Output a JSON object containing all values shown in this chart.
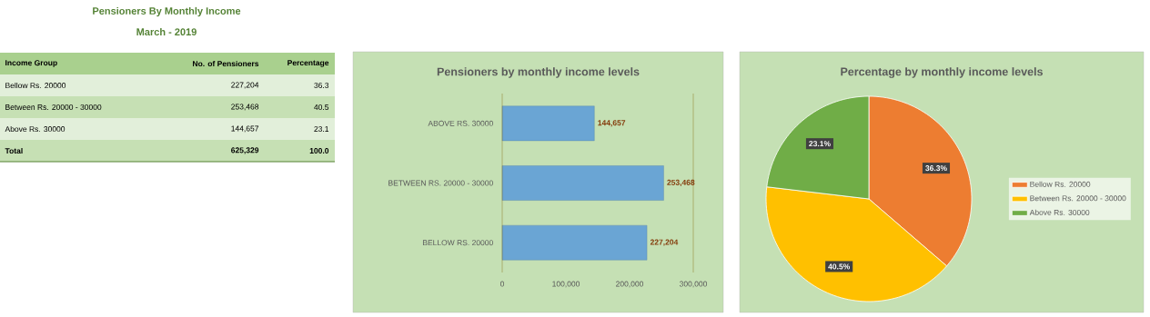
{
  "chart_data": [
    {
      "type": "other",
      "title": "Pensioners By Monthly Income",
      "subtitle": "March - 2019",
      "annotations": [
        "Income Group",
        "No. of Pensioners",
        "Percentage",
        "Bellow Rs. 20000",
        "227,204",
        "36.3",
        "Between Rs. 20000 - 30000",
        "253,468",
        "40.5",
        "Above Rs. 30000",
        "144,657",
        "23.1",
        "Total",
        "625,329",
        "100.0"
      ]
    },
    {
      "type": "bar",
      "orientation": "horizontal",
      "title": "Pensioners by monthly income levels",
      "categories": [
        "ABOVE RS. 30000",
        "BETWEEN RS. 20000 - 30000",
        "BELLOW RS. 20000"
      ],
      "values": [
        144657,
        253468,
        227204
      ],
      "value_labels": [
        "144,657",
        "253,468",
        "227,204"
      ],
      "color": "#6aa5d4",
      "xlim": [
        0,
        300000
      ],
      "xticks": [
        0,
        {
          "value": 100000,
          "label": "100,000"
        },
        {
          "value": 200000,
          "label": "200,000"
        },
        {
          "value": 300000,
          "label": "300,000"
        }
      ],
      "grid": false,
      "legend": false
    },
    {
      "type": "pie",
      "title": "Percentage by monthly income levels",
      "categories": [
        "Bellow Rs. 20000",
        "Between Rs. 20000 - 30000",
        "Above Rs. 30000"
      ],
      "values": [
        36.3,
        40.5,
        23.1
      ],
      "value_labels": [
        "36.3%",
        "40.5%",
        "23.1%"
      ],
      "colors": [
        "#ed7d31",
        "#ffc000",
        "#70ad47"
      ],
      "legend": "right"
    }
  ]
}
